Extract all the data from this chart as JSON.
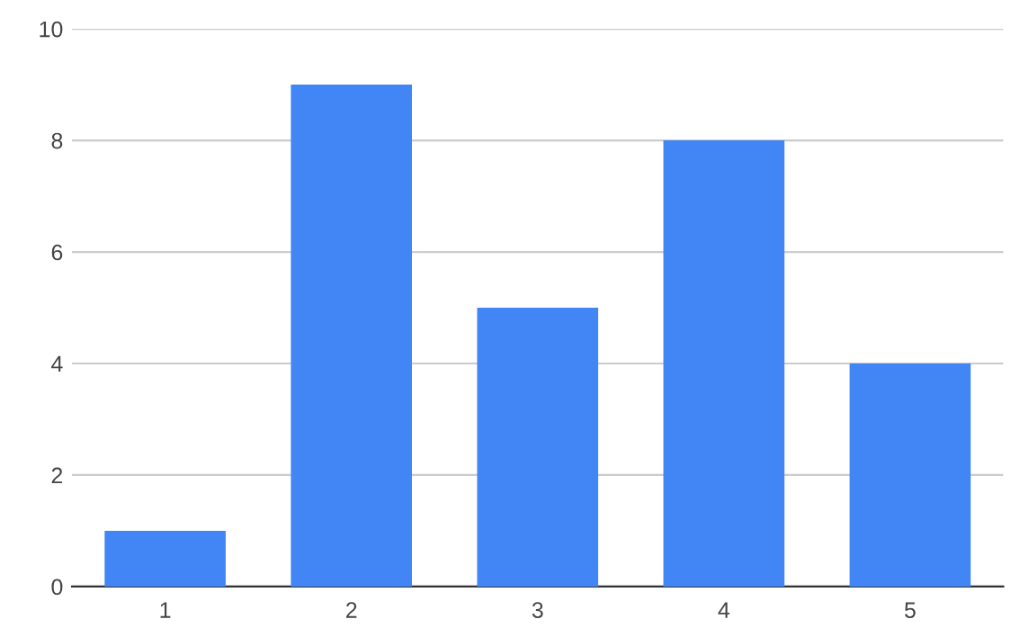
{
  "chart_data": {
    "type": "bar",
    "categories": [
      "1",
      "2",
      "3",
      "4",
      "5"
    ],
    "values": [
      1,
      9,
      5,
      8,
      4
    ],
    "color": "#4285f4",
    "ylim": [
      0,
      10
    ],
    "yticks": [
      0,
      2,
      4,
      6,
      8,
      10
    ],
    "grid": "y"
  }
}
